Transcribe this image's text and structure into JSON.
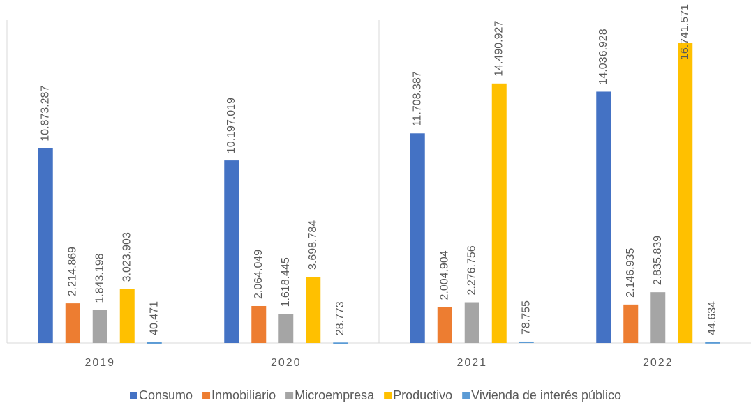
{
  "chart_data": {
    "type": "bar",
    "categories": [
      "2019",
      "2020",
      "2021",
      "2022"
    ],
    "series": [
      {
        "name": "Consumo",
        "color": "#4472c4",
        "values": [
          10873287,
          10197019,
          11708387,
          14036928
        ],
        "value_labels": [
          "10.873.287",
          "10.197.019",
          "11.708.387",
          "14.036.928"
        ]
      },
      {
        "name": "Inmobiliario",
        "color": "#ed7d31",
        "values": [
          2214869,
          2064049,
          2004904,
          2146935
        ],
        "value_labels": [
          "2.214.869",
          "2.064.049",
          "2.004.904",
          "2.146.935"
        ]
      },
      {
        "name": "Microempresa",
        "color": "#a5a5a5",
        "values": [
          1843198,
          1618445,
          2276756,
          2835839
        ],
        "value_labels": [
          "1.843.198",
          "1.618.445",
          "2.276.756",
          "2.835.839"
        ]
      },
      {
        "name": "Productivo",
        "color": "#ffc000",
        "values": [
          3023903,
          3698784,
          14490927,
          16741571
        ],
        "value_labels": [
          "3.023.903",
          "3.698.784",
          "14.490.927",
          "16.741.571"
        ]
      },
      {
        "name": "Vivienda de interés público",
        "color": "#5b9bd5",
        "values": [
          40471,
          28773,
          78755,
          44634
        ],
        "value_labels": [
          "40.471",
          "28.773",
          "78.755",
          "44.634"
        ]
      }
    ],
    "ylim": [
      0,
      19000000
    ],
    "legend": "bottom"
  }
}
